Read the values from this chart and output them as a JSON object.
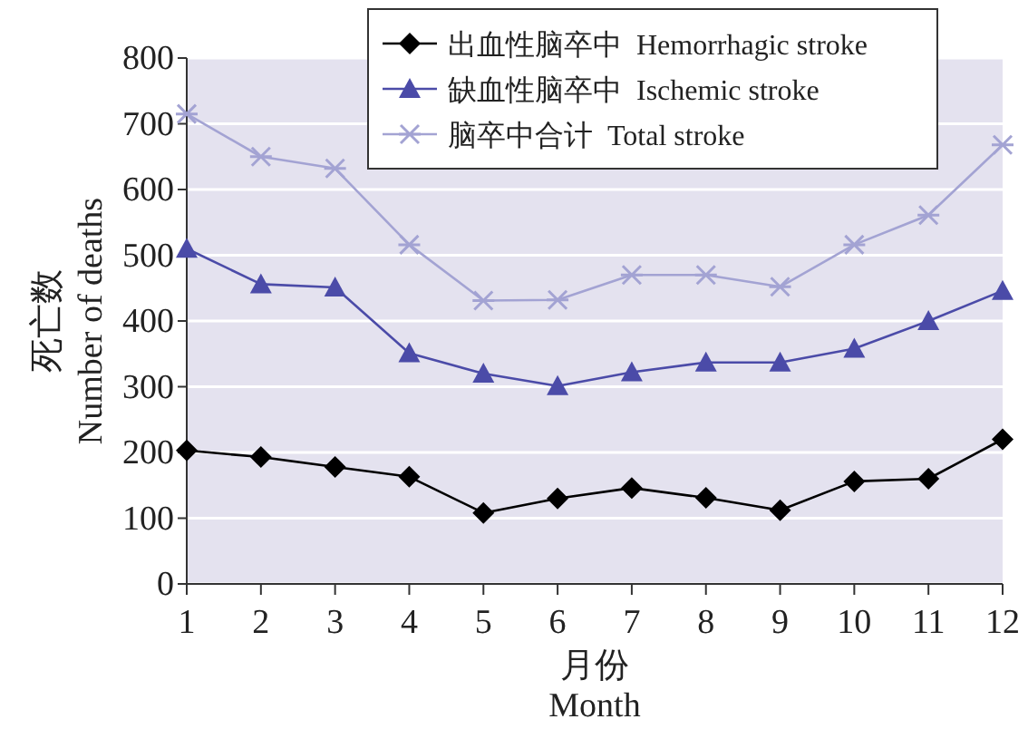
{
  "chart_data": {
    "type": "line",
    "xlabel": "月份\nMonth",
    "ylabel": "死亡数\nNumber of deaths",
    "x": [
      1,
      2,
      3,
      4,
      5,
      6,
      7,
      8,
      9,
      10,
      11,
      12
    ],
    "xlim": [
      1,
      12
    ],
    "xticks": [
      1,
      2,
      3,
      4,
      5,
      6,
      7,
      8,
      9,
      10,
      11,
      12
    ],
    "ylim": [
      0,
      800
    ],
    "yticks": [
      0,
      100,
      200,
      300,
      400,
      500,
      600,
      700,
      800
    ],
    "grid": "y",
    "legend": "top right",
    "line_style": "solid",
    "series": [
      {
        "name": "出血性脑卒中  Hemorrhagic stroke",
        "color": "#000000",
        "marker": "diamond",
        "values": [
          203,
          193,
          178,
          163,
          108,
          130,
          146,
          131,
          112,
          156,
          160,
          220
        ]
      },
      {
        "name": "缺血性脑卒中  Ischemic stroke",
        "color": "#4b4ba8",
        "marker": "triangle",
        "values": [
          510,
          456,
          451,
          351,
          320,
          301,
          322,
          337,
          337,
          358,
          400,
          446
        ]
      },
      {
        "name": "脑卒中合计  Total stroke",
        "color": "#a3a3d3",
        "marker": "cross",
        "values": [
          715,
          650,
          632,
          516,
          431,
          432,
          470,
          470,
          452,
          516,
          561,
          668
        ]
      }
    ]
  }
}
